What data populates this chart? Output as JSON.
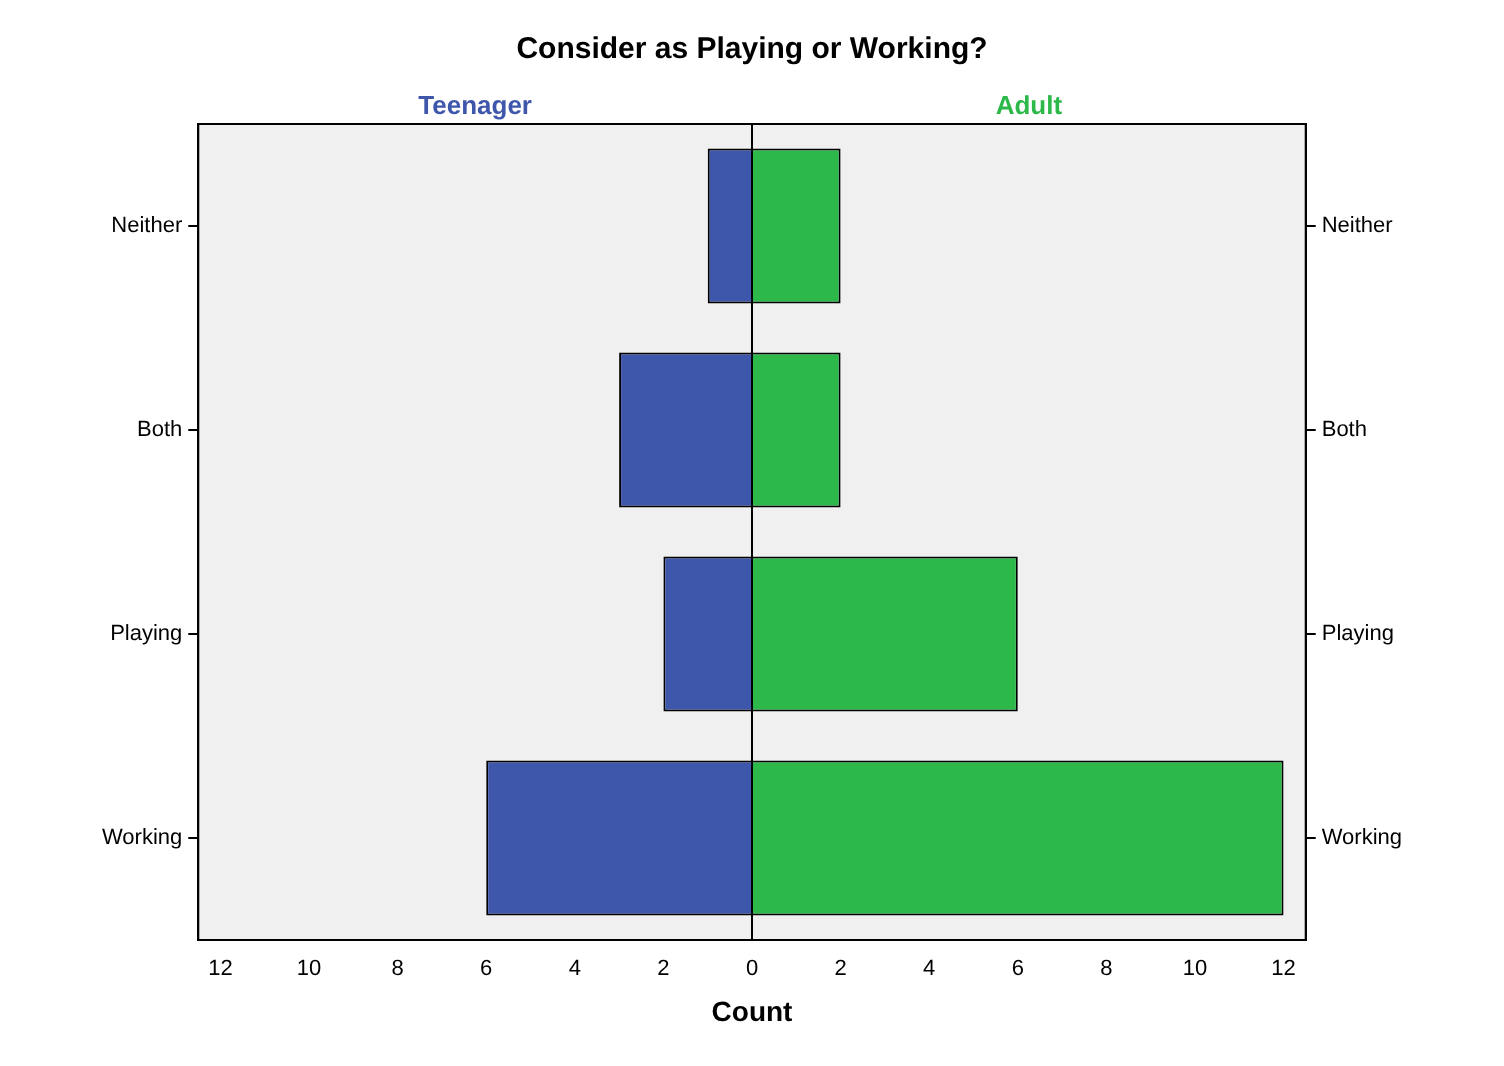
{
  "chart_data": {
    "type": "bar",
    "orientation": "horizontal",
    "stacked": true,
    "title": "Consider as Playing or Working?",
    "xlabel": "Count",
    "categories": [
      "Neither",
      "Both",
      "Playing",
      "Working"
    ],
    "series": [
      {
        "name": "Teenager",
        "color": "#3f57ab",
        "values": [
          -1,
          -3,
          -2,
          -6
        ]
      },
      {
        "name": "Adult",
        "color": "#2db84a",
        "values": [
          2,
          2,
          6,
          12
        ]
      }
    ],
    "xlim": [
      -12.5,
      12.5
    ],
    "xticks": [
      {
        "value": -12,
        "label": "12"
      },
      {
        "value": -10,
        "label": "10"
      },
      {
        "value": -8,
        "label": "8"
      },
      {
        "value": -6,
        "label": "6"
      },
      {
        "value": -4,
        "label": "4"
      },
      {
        "value": -2,
        "label": "2"
      },
      0,
      2,
      4,
      6,
      8,
      10,
      12
    ],
    "ref_lines": [
      {
        "axis": "x",
        "value": 0,
        "color": "#000000"
      }
    ],
    "grid": false,
    "legend": false
  }
}
